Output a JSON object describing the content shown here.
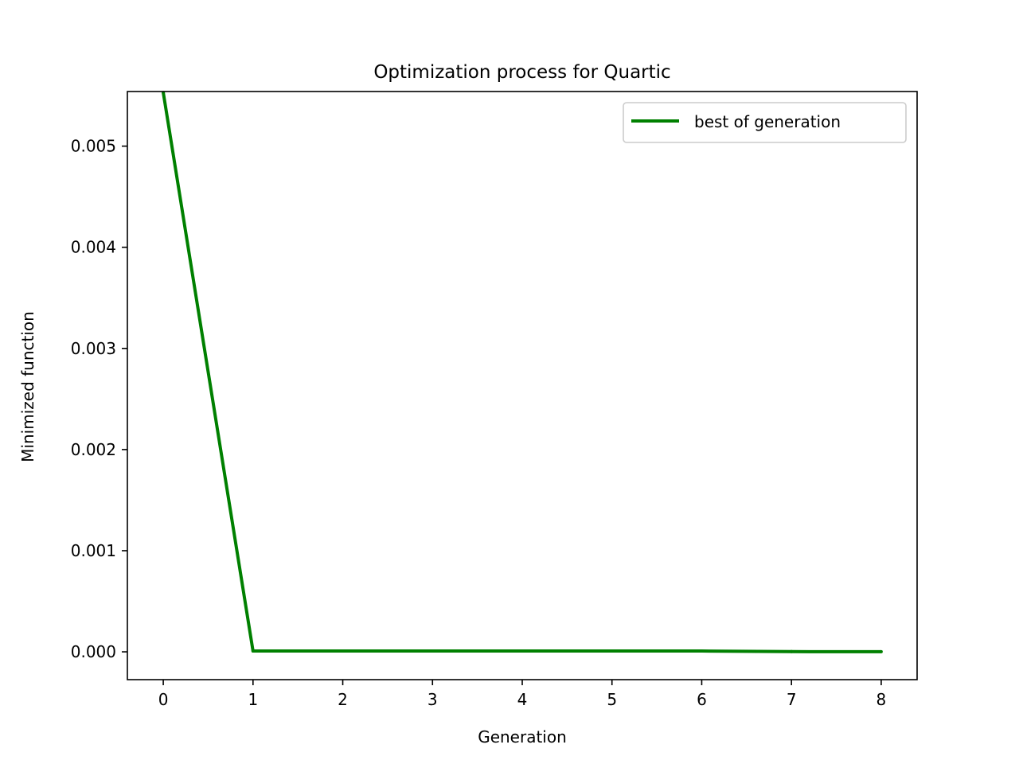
{
  "chart_data": {
    "type": "line",
    "title": "Optimization process for Quartic",
    "xlabel": "Generation",
    "ylabel": "Minimized function",
    "xlim": [
      -0.4,
      8.4
    ],
    "ylim": [
      -0.000275,
      0.00554
    ],
    "xticks": [
      0,
      1,
      2,
      3,
      4,
      5,
      6,
      7,
      8
    ],
    "xtick_labels": [
      "0",
      "1",
      "2",
      "3",
      "4",
      "5",
      "6",
      "7",
      "8"
    ],
    "yticks": [
      0.0,
      0.001,
      0.002,
      0.003,
      0.004,
      0.005
    ],
    "ytick_labels": [
      "0.000",
      "0.001",
      "0.002",
      "0.003",
      "0.004",
      "0.005"
    ],
    "grid": false,
    "legend_position": "top-right",
    "series": [
      {
        "name": "best of generation",
        "color": "#008000",
        "x": [
          0,
          1,
          2,
          3,
          4,
          5,
          6,
          7,
          8
        ],
        "y": [
          0.00553,
          8e-06,
          8e-06,
          8e-06,
          8e-06,
          8e-06,
          8e-06,
          2e-06,
          1e-06
        ]
      }
    ]
  }
}
